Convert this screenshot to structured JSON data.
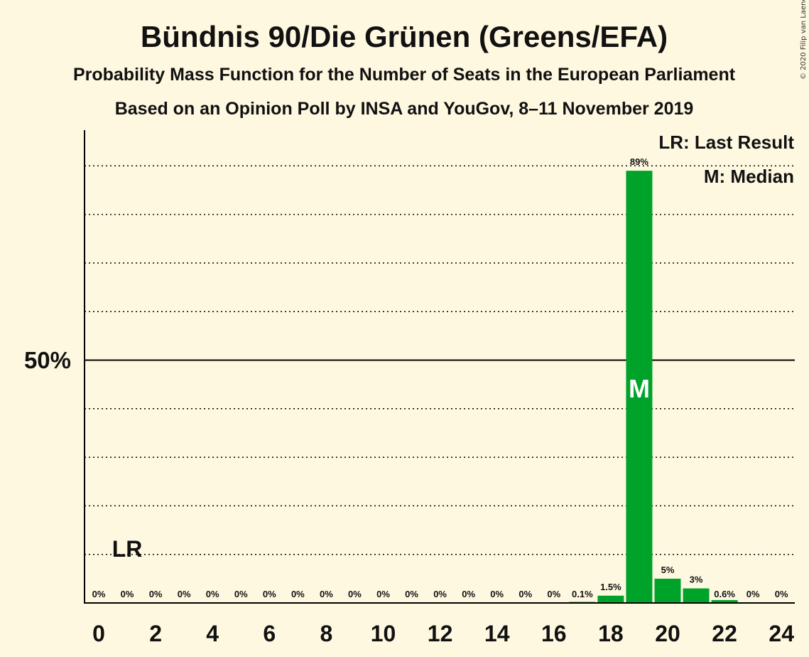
{
  "title": "Bündnis 90/Die Grünen (Greens/EFA)",
  "subtitle1": "Probability Mass Function for the Number of Seats in the European Parliament",
  "subtitle2": "Based on an Opinion Poll by INSA and YouGov, 8–11 November 2019",
  "copyright": "© 2020 Filip van Laenen",
  "legend": {
    "lr": "LR: Last Result",
    "median": "M: Median"
  },
  "y_label_50": "50%",
  "lr_marker": "LR",
  "median_marker": "M",
  "colors": {
    "background": "#fff8e1",
    "bar": "#00a32a",
    "axis": "#000000"
  },
  "chart_data": {
    "type": "bar",
    "x": [
      0,
      1,
      2,
      3,
      4,
      5,
      6,
      7,
      8,
      9,
      10,
      11,
      12,
      13,
      14,
      15,
      16,
      17,
      18,
      19,
      20,
      21,
      22,
      23,
      24
    ],
    "values": [
      0,
      0,
      0,
      0,
      0,
      0,
      0,
      0,
      0,
      0,
      0,
      0,
      0,
      0,
      0,
      0,
      0,
      0.1,
      1.5,
      89,
      5,
      3,
      0.6,
      0,
      0
    ],
    "labels": [
      "0%",
      "0%",
      "0%",
      "0%",
      "0%",
      "0%",
      "0%",
      "0%",
      "0%",
      "0%",
      "0%",
      "0%",
      "0%",
      "0%",
      "0%",
      "0%",
      "0%",
      "0.1%",
      "1.5%",
      "89%",
      "5%",
      "3%",
      "0.6%",
      "0%",
      "0%"
    ],
    "x_ticks": [
      0,
      2,
      4,
      6,
      8,
      10,
      12,
      14,
      16,
      18,
      20,
      22,
      24
    ],
    "x_tick_labels": [
      "0",
      "2",
      "4",
      "6",
      "8",
      "10",
      "12",
      "14",
      "16",
      "18",
      "20",
      "22",
      "24"
    ],
    "ylim": [
      0,
      97
    ],
    "gridlines": [
      10,
      20,
      30,
      40,
      60,
      70,
      80,
      90
    ],
    "majorline": 50,
    "last_result_seat": 1,
    "median_seat": 19,
    "grid": true,
    "legend_position": "top-right"
  }
}
